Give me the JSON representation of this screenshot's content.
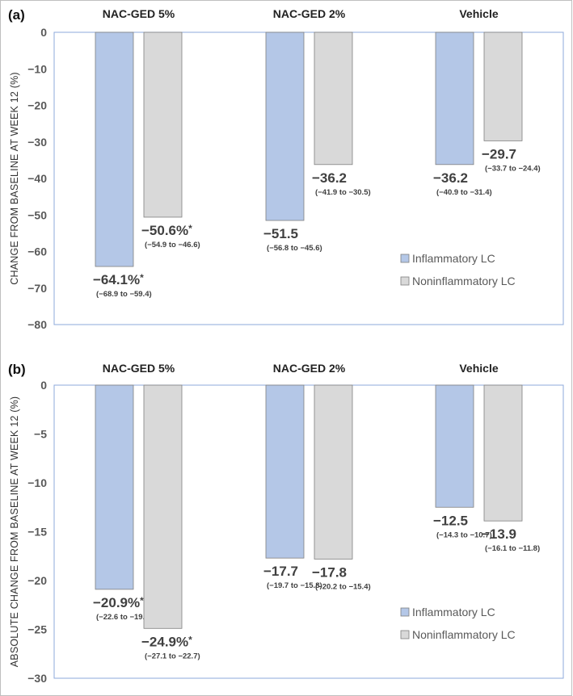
{
  "chart_data": [
    {
      "type": "bar",
      "panel_label": "(a)",
      "categories": [
        "NAC-GED 5%",
        "NAC-GED 2%",
        "Vehicle"
      ],
      "ylabel": "CHANGE FROM BASELINE AT WEEK 12 (%)",
      "ylim": [
        -80,
        0
      ],
      "yticks": [
        0,
        -10,
        -20,
        -30,
        -40,
        -50,
        -60,
        -70,
        -80
      ],
      "tick_labels": [
        "0",
        "−10",
        "−20",
        "−30",
        "−40",
        "−50",
        "−60",
        "−70",
        "−80"
      ],
      "legend_position": "bottom-right",
      "series": [
        {
          "name": "Inflammatory LC",
          "color": "#b4c7e7",
          "values": [
            -64.1,
            -51.5,
            -36.2
          ],
          "labels": [
            "−64.1%*",
            "−51.5",
            "−36.2"
          ],
          "ci": [
            "(−68.9 to −59.4)",
            "(−56.8 to −45.6)",
            "(−40.9 to −31.4)"
          ]
        },
        {
          "name": "Noninflammatory LC",
          "color": "#d9d9d9",
          "values": [
            -50.6,
            -36.2,
            -29.7
          ],
          "labels": [
            "−50.6%*",
            "−36.2",
            "−29.7"
          ],
          "ci": [
            "(−54.9 to −46.6)",
            "(−41.9 to −30.5)",
            "(−33.7 to −24.4)"
          ]
        }
      ]
    },
    {
      "type": "bar",
      "panel_label": "(b)",
      "categories": [
        "NAC-GED 5%",
        "NAC-GED 2%",
        "Vehicle"
      ],
      "ylabel": "ABSOLUTE CHANGE FROM BASELINE AT WEEK 12 (%)",
      "ylim": [
        -30,
        0
      ],
      "yticks": [
        0,
        -5,
        -10,
        -15,
        -20,
        -25,
        -30
      ],
      "tick_labels": [
        "0",
        "−5",
        "−10",
        "−15",
        "−20",
        "−25",
        "−30"
      ],
      "legend_position": "bottom-right",
      "series": [
        {
          "name": "Inflammatory LC",
          "color": "#b4c7e7",
          "values": [
            -20.9,
            -17.7,
            -12.5
          ],
          "labels": [
            "−20.9%*",
            "−17.7",
            "−12.5"
          ],
          "ci": [
            "(−22.6 to −19.1)",
            "(−19.7 to −15.8)",
            "(−14.3 to −10.7)"
          ]
        },
        {
          "name": "Noninflammatory LC",
          "color": "#d9d9d9",
          "values": [
            -24.9,
            -17.8,
            -13.9
          ],
          "labels": [
            "−24.9%*",
            "−17.8",
            "−13.9"
          ],
          "ci": [
            "(−27.1 to −22.7)",
            "(−20.2 to −15.4)",
            "(−16.1 to −11.8)"
          ]
        }
      ]
    }
  ]
}
